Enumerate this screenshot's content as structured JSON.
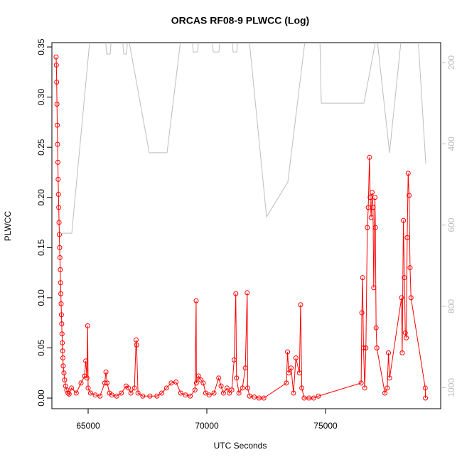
{
  "chart_data": {
    "type": "line",
    "title": "ORCAS RF08-9 PLWCC (Log)",
    "xlabel": "UTC Seconds",
    "ylabel": "PLWCC",
    "xlim": [
      63473,
      79850
    ],
    "xticks": [
      65000,
      70000,
      75000
    ],
    "ylim": [
      -0.0106,
      0.3543
    ],
    "yticks": [
      {
        "value": 0,
        "label": "0.00"
      },
      0.05,
      {
        "value": 0.1,
        "label": "0.10"
      },
      0.15,
      {
        "value": 0.2,
        "label": "0.20"
      },
      0.25,
      {
        "value": 0.3,
        "label": "0.30"
      },
      0.35
    ],
    "y2lim": [
      1052,
      151
    ],
    "y2ticks": [
      200,
      400,
      600,
      800,
      1000
    ],
    "series": [
      {
        "color": "#ff0000",
        "markers": true,
        "x": [
          63650,
          63662,
          63675,
          63687,
          63700,
          63712,
          63725,
          63737,
          63750,
          63762,
          63775,
          63787,
          63800,
          63812,
          63825,
          63837,
          63850,
          63862,
          63875,
          63887,
          63900,
          63912,
          63925,
          63937,
          63950,
          63980,
          64010,
          64050,
          64100,
          64150,
          64200,
          64300,
          64500,
          64700,
          64850,
          64900,
          64950,
          64980,
          65000,
          65100,
          65300,
          65500,
          65700,
          65750,
          65800,
          65900,
          66000,
          66200,
          66400,
          66600,
          66700,
          66800,
          66950,
          67020,
          67040,
          67100,
          67300,
          67600,
          67900,
          68100,
          68300,
          68500,
          68700,
          68900,
          69100,
          69300,
          69500,
          69550,
          69560,
          69650,
          69750,
          69850,
          69950,
          70100,
          70300,
          70500,
          70600,
          70700,
          70850,
          70950,
          71050,
          71150,
          71220,
          71250,
          71350,
          71500,
          71620,
          71700,
          71720,
          71800,
          72000,
          72200,
          72400,
          73350,
          73400,
          73450,
          73550,
          73650,
          73750,
          73900,
          73950,
          74000,
          74100,
          74300,
          74500,
          74700,
          76500,
          76530,
          76560,
          76600,
          76650,
          76700,
          76760,
          76800,
          76850,
          76880,
          76920,
          76960,
          77000,
          77030,
          77080,
          77100,
          77130,
          77160,
          77500,
          77600,
          77650,
          77700,
          78200,
          78230,
          78280,
          78320,
          78360,
          78400,
          78440,
          78480,
          78520,
          78560,
          78600,
          79200,
          79210
        ],
        "values": [
          0.34,
          0.332,
          0.315,
          0.293,
          0.272,
          0.253,
          0.235,
          0.218,
          0.203,
          0.19,
          0.175,
          0.163,
          0.15,
          0.14,
          0.128,
          0.115,
          0.104,
          0.094,
          0.083,
          0.074,
          0.064,
          0.055,
          0.047,
          0.04,
          0.032,
          0.025,
          0.018,
          0.012,
          0.008,
          0.005,
          0.004,
          0.01,
          0.005,
          0.015,
          0.022,
          0.037,
          0.02,
          0.072,
          0.01,
          0.005,
          0.003,
          0.002,
          0.015,
          0.026,
          0.015,
          0.005,
          0.003,
          0.002,
          0.005,
          0.012,
          0.01,
          0.005,
          0.01,
          0.058,
          0.053,
          0.005,
          0.002,
          0.002,
          0.002,
          0.005,
          0.01,
          0.015,
          0.016,
          0.005,
          0.003,
          0.002,
          0.008,
          0.097,
          0.015,
          0.022,
          0.018,
          0.015,
          0.005,
          0.003,
          0.005,
          0.02,
          0.012,
          0.005,
          0.01,
          0.005,
          0.008,
          0.038,
          0.104,
          0.02,
          0.005,
          0.01,
          0.03,
          0.105,
          0.01,
          0.002,
          0.001,
          0,
          0,
          0.015,
          0.046,
          0.025,
          0.03,
          0.005,
          0.04,
          0.025,
          0.093,
          0.01,
          0,
          0,
          0,
          0.002,
          0.015,
          0.085,
          0.12,
          0.05,
          0.01,
          0.05,
          0.17,
          0.19,
          0.24,
          0.2,
          0.18,
          0.205,
          0.19,
          0.11,
          0.2,
          0.17,
          0.07,
          0.05,
          0.005,
          0.01,
          0.045,
          0.02,
          0.1,
          0.045,
          0.177,
          0.12,
          0.065,
          0.06,
          0.16,
          0.224,
          0.202,
          0.13,
          0.1,
          0.01,
          0
        ]
      },
      {
        "color": "#bebebe",
        "axis": "y2",
        "markers": false,
        "x": [
          63802,
          64311,
          65090,
          65718,
          65778,
          65928,
          65988,
          66437,
          66497,
          66617,
          66677,
          67575,
          68323,
          68922,
          69371,
          69431,
          69611,
          69671,
          70210,
          70269,
          70509,
          70569,
          71048,
          71108,
          71257,
          71317,
          71766,
          72515,
          73413,
          74162,
          74760,
          74820,
          76617,
          77156,
          77695,
          78204,
          78892,
          79222
        ],
        "values": [
          620,
          620,
          133,
          133,
          179,
          179,
          133,
          133,
          179,
          179,
          133,
          422,
          422,
          133,
          133,
          174,
          174,
          133,
          133,
          174,
          174,
          133,
          133,
          174,
          174,
          133,
          133,
          580,
          494,
          133,
          133,
          300,
          300,
          133,
          422,
          133,
          133,
          449
        ]
      }
    ]
  }
}
